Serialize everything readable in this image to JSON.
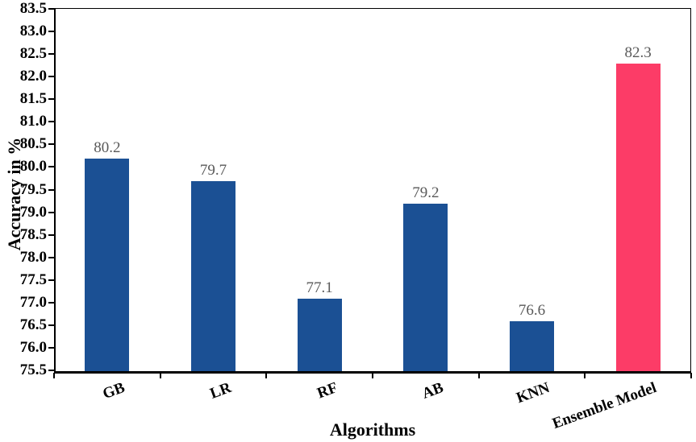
{
  "chart_data": {
    "type": "bar",
    "title": "",
    "xlabel": "Algorithms",
    "ylabel": "Accuracy in %",
    "categories": [
      "GB",
      "LR",
      "RF",
      "AB",
      "KNN",
      "Ensemble Model"
    ],
    "values": [
      80.2,
      79.7,
      77.1,
      79.2,
      76.6,
      82.3
    ],
    "data_labels": [
      "80.2",
      "79.7",
      "77.1",
      "79.2",
      "76.6",
      "82.3"
    ],
    "bar_colors": [
      "#1B5094",
      "#1B5094",
      "#1B5094",
      "#1B5094",
      "#1B5094",
      "#FC3C67"
    ],
    "ylim": [
      75.5,
      83.5
    ],
    "ytick_step": 0.5,
    "ytick_labels": [
      "75.5",
      "76.0",
      "76.5",
      "77.0",
      "77.5",
      "78.0",
      "78.5",
      "79.0",
      "79.5",
      "80.0",
      "80.5",
      "81.0",
      "81.5",
      "82.0",
      "82.5",
      "83.0",
      "83.5"
    ],
    "grid": false,
    "legend": false,
    "data_label_color": "#595959",
    "axis_color": "#000000",
    "background": "#FFFFFF"
  }
}
